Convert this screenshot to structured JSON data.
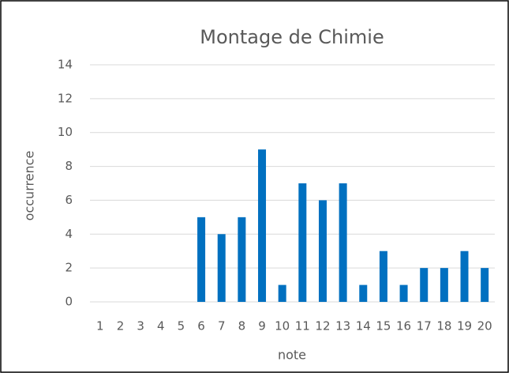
{
  "chart_data": {
    "type": "bar",
    "title": "Montage de Chimie",
    "x_label": "note",
    "y_label": "occurrence",
    "categories": [
      "1",
      "2",
      "3",
      "4",
      "5",
      "6",
      "7",
      "8",
      "9",
      "10",
      "11",
      "12",
      "13",
      "14",
      "15",
      "16",
      "17",
      "18",
      "19",
      "20"
    ],
    "values": [
      0,
      0,
      0,
      0,
      0,
      5,
      4,
      5,
      9,
      1,
      7,
      6,
      7,
      1,
      3,
      1,
      2,
      2,
      3,
      2
    ],
    "color": "#0070c0",
    "ylim": [
      0,
      14
    ],
    "yticks": [
      0,
      2,
      4,
      6,
      8,
      10,
      12,
      14
    ],
    "grid": true
  }
}
